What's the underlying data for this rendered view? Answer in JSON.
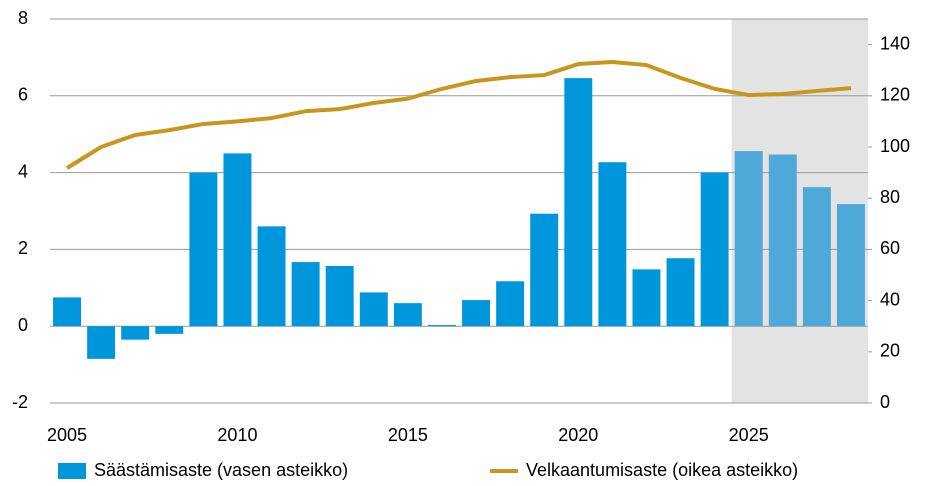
{
  "chart_data": {
    "type": "bar_line",
    "categories": [
      "2005",
      null,
      null,
      null,
      null,
      "2010",
      null,
      null,
      null,
      null,
      "2015",
      null,
      null,
      null,
      null,
      "2020",
      null,
      null,
      null,
      null,
      "2025",
      null,
      null,
      null
    ],
    "series": [
      {
        "name": "Säästämisaste (vasen asteikko)",
        "type": "bar",
        "color": "#0096dc",
        "colors": [
          "#0096dc",
          "#0096dc",
          "#0096dc",
          "#0096dc",
          "#0096dc",
          "#0096dc",
          "#0096dc",
          "#0096dc",
          "#0096dc",
          "#0096dc",
          "#0096dc",
          "#0096dc",
          "#0096dc",
          "#0096dc",
          "#0096dc",
          "#0096dc",
          "#0096dc",
          "#0096dc",
          "#0096dc",
          "#0096dc",
          "#4ea8d8",
          "#4ea8d8",
          "#4ea8d8",
          "#4ea8d8"
        ],
        "values": [
          0.75,
          -0.85,
          -0.35,
          -0.2,
          4.0,
          4.5,
          2.6,
          1.67,
          1.57,
          0.88,
          0.6,
          0.03,
          0.68,
          1.17,
          2.93,
          6.46,
          4.27,
          1.48,
          1.77,
          4.0,
          4.56,
          4.47,
          3.62,
          3.18
        ]
      },
      {
        "name": "Velkaantumisaste (oikea asteikko)",
        "type": "line",
        "axis": "y2",
        "color": "#c8961e",
        "values": [
          91.8,
          100,
          104.7,
          106.6,
          109,
          110,
          111.3,
          114,
          114.8,
          117.2,
          118.9,
          122.7,
          125.8,
          127.3,
          128.1,
          132.4,
          133.2,
          132,
          127,
          122.7,
          120.3,
          120.7,
          121.9,
          123
        ]
      }
    ],
    "ylim": [
      -2,
      8
    ],
    "yticks": [
      -2,
      0,
      2,
      4,
      6,
      8
    ],
    "y2lim": [
      0,
      150
    ],
    "y2ticks": [
      0,
      20,
      40,
      60,
      80,
      100,
      120,
      140
    ],
    "grid": true,
    "legend": "bottom"
  }
}
